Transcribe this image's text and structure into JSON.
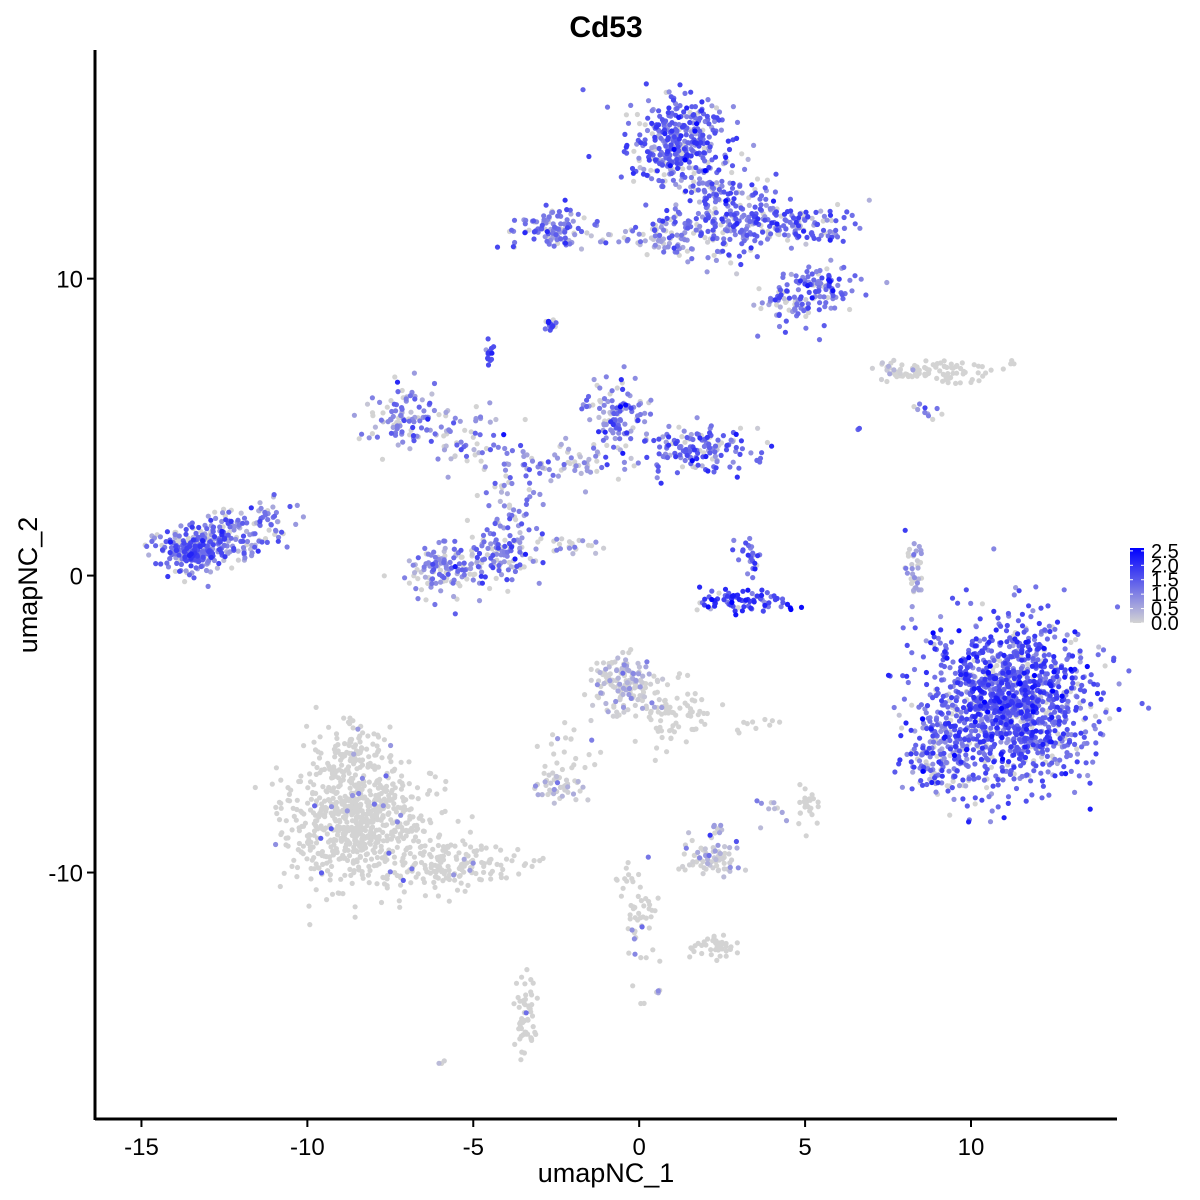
{
  "chart_data": {
    "type": "scatter",
    "title": "Cd53",
    "xlabel": "umapNC_1",
    "ylabel": "umapNC_2",
    "xlim": [
      -16.4,
      14.4
    ],
    "ylim": [
      -18.3,
      17.7
    ],
    "x_ticks": [
      -15,
      -10,
      -5,
      0,
      5,
      10
    ],
    "y_ticks": [
      -10,
      0,
      10
    ],
    "grid": false,
    "legend_position": "right",
    "color_scale": {
      "low_color": "#d3d3d3",
      "high_color": "#0000ff",
      "min": 0.0,
      "max": 2.6,
      "breaks": [
        "0.0",
        "0.5",
        "1.0",
        "1.5",
        "2.0",
        "2.5"
      ]
    },
    "clusters": [
      {
        "cx": 1.2,
        "cy": 14.6,
        "sx": 0.75,
        "sy": 0.8,
        "n": 380,
        "expr": 1.35
      },
      {
        "cx": 2.6,
        "cy": 12.2,
        "sx": 0.8,
        "sy": 0.8,
        "n": 220,
        "expr": 1.2
      },
      {
        "cx": 4.7,
        "cy": 11.8,
        "sx": 0.9,
        "sy": 0.35,
        "n": 140,
        "expr": 1.25
      },
      {
        "cx": 5.5,
        "cy": 9.7,
        "sx": 0.5,
        "sy": 0.35,
        "n": 90,
        "expr": 1.3
      },
      {
        "cx": 4.5,
        "cy": 9.1,
        "sx": 0.45,
        "sy": 0.4,
        "n": 60,
        "expr": 1.2
      },
      {
        "cx": -2.6,
        "cy": 11.7,
        "sx": 0.55,
        "sy": 0.35,
        "n": 100,
        "expr": 1.15
      },
      {
        "cx": -0.3,
        "cy": 11.3,
        "sx": 1.3,
        "sy": 0.15,
        "n": 40,
        "expr": 0.7
      },
      {
        "cx": 0.9,
        "cy": 11.4,
        "sx": 0.5,
        "sy": 0.35,
        "n": 50,
        "expr": 1.0
      },
      {
        "cx": -2.7,
        "cy": 8.5,
        "sx": 0.12,
        "sy": 0.1,
        "n": 15,
        "expr": 1.5
      },
      {
        "cx": -4.5,
        "cy": 7.4,
        "sx": 0.1,
        "sy": 0.2,
        "n": 15,
        "expr": 1.6
      },
      {
        "cx": 9.0,
        "cy": 6.9,
        "sx": 0.8,
        "sy": 0.2,
        "n": 80,
        "expr": 0.1
      },
      {
        "cx": 7.8,
        "cy": 6.9,
        "sx": 0.35,
        "sy": 0.15,
        "n": 20,
        "expr": 0.15
      },
      {
        "cx": -7.1,
        "cy": 5.5,
        "sx": 0.6,
        "sy": 0.5,
        "n": 90,
        "expr": 1.0
      },
      {
        "cx": -5.4,
        "cy": 4.6,
        "sx": 0.9,
        "sy": 0.6,
        "n": 70,
        "expr": 0.9
      },
      {
        "cx": -0.8,
        "cy": 5.5,
        "sx": 0.5,
        "sy": 0.55,
        "n": 110,
        "expr": 1.05
      },
      {
        "cx": 1.8,
        "cy": 4.3,
        "sx": 0.9,
        "sy": 0.4,
        "n": 150,
        "expr": 1.25
      },
      {
        "cx": -2.0,
        "cy": 3.8,
        "sx": 1.3,
        "sy": 0.35,
        "n": 70,
        "expr": 0.85
      },
      {
        "cx": -3.9,
        "cy": 2.3,
        "sx": 0.5,
        "sy": 0.9,
        "n": 60,
        "expr": 1.0
      },
      {
        "cx": -5.8,
        "cy": 0.2,
        "sx": 0.55,
        "sy": 0.45,
        "n": 120,
        "expr": 1.0
      },
      {
        "cx": -4.2,
        "cy": 0.7,
        "sx": 0.5,
        "sy": 0.5,
        "n": 100,
        "expr": 1.0
      },
      {
        "cx": -2.0,
        "cy": 1.0,
        "sx": 0.4,
        "sy": 0.2,
        "n": 20,
        "expr": 0.3
      },
      {
        "cx": -13.5,
        "cy": 0.9,
        "sx": 0.55,
        "sy": 0.35,
        "n": 230,
        "expr": 1.3
      },
      {
        "cx": -12.3,
        "cy": 1.3,
        "sx": 0.5,
        "sy": 0.45,
        "n": 110,
        "expr": 1.05
      },
      {
        "cx": -11.3,
        "cy": 1.7,
        "sx": 0.4,
        "sy": 0.5,
        "n": 40,
        "expr": 1.0
      },
      {
        "cx": 3.1,
        "cy": -0.8,
        "sx": 0.7,
        "sy": 0.2,
        "n": 80,
        "expr": 1.8
      },
      {
        "cx": 3.3,
        "cy": 0.6,
        "sx": 0.25,
        "sy": 0.4,
        "n": 25,
        "expr": 1.35
      },
      {
        "cx": 8.3,
        "cy": 0.2,
        "sx": 0.15,
        "sy": 0.55,
        "n": 35,
        "expr": 0.6
      },
      {
        "cx": 11.2,
        "cy": -4.2,
        "sx": 1.2,
        "sy": 1.35,
        "n": 1300,
        "expr": 1.45
      },
      {
        "cx": 9.1,
        "cy": -6.0,
        "sx": 0.55,
        "sy": 0.8,
        "n": 170,
        "expr": 1.25
      },
      {
        "cx": -0.5,
        "cy": -3.6,
        "sx": 0.5,
        "sy": 0.5,
        "n": 160,
        "expr": 0.2
      },
      {
        "cx": 1.1,
        "cy": -4.7,
        "sx": 0.5,
        "sy": 0.6,
        "n": 70,
        "expr": 0.1
      },
      {
        "cx": -1.8,
        "cy": -6.1,
        "sx": 0.6,
        "sy": 0.6,
        "n": 25,
        "expr": 0.05
      },
      {
        "cx": -2.4,
        "cy": -7.1,
        "sx": 0.4,
        "sy": 0.2,
        "n": 45,
        "expr": 0.25
      },
      {
        "cx": -8.4,
        "cy": -8.2,
        "sx": 1.1,
        "sy": 1.1,
        "n": 750,
        "expr": 0.04
      },
      {
        "cx": -8.6,
        "cy": -5.9,
        "sx": 0.45,
        "sy": 0.5,
        "n": 80,
        "expr": 0.05
      },
      {
        "cx": -5.6,
        "cy": -9.8,
        "sx": 1.2,
        "sy": 0.4,
        "n": 150,
        "expr": 0.02
      },
      {
        "cx": 2.1,
        "cy": -9.5,
        "sx": 0.5,
        "sy": 0.3,
        "n": 70,
        "expr": 0.15
      },
      {
        "cx": 2.4,
        "cy": -8.6,
        "sx": 0.15,
        "sy": 0.15,
        "n": 10,
        "expr": 0.6
      },
      {
        "cx": 0.0,
        "cy": -11.5,
        "sx": 0.3,
        "sy": 1.0,
        "n": 55,
        "expr": 0.05
      },
      {
        "cx": 2.3,
        "cy": -12.5,
        "sx": 0.4,
        "sy": 0.2,
        "n": 40,
        "expr": 0.05
      },
      {
        "cx": -3.4,
        "cy": -14.9,
        "sx": 0.15,
        "sy": 0.6,
        "n": 55,
        "expr": 0.0
      },
      {
        "cx": 5.1,
        "cy": -7.7,
        "sx": 0.2,
        "sy": 0.35,
        "n": 25,
        "expr": 0.05
      },
      {
        "cx": 3.6,
        "cy": -5.0,
        "sx": 0.5,
        "sy": 0.15,
        "n": 10,
        "expr": 0.1
      },
      {
        "cx": 4.0,
        "cy": -7.9,
        "sx": 0.25,
        "sy": 0.3,
        "n": 10,
        "expr": 0.4
      },
      {
        "cx": 8.8,
        "cy": 5.6,
        "sx": 0.3,
        "sy": 0.15,
        "n": 10,
        "expr": 0.9
      },
      {
        "cx": 0.6,
        "cy": -14.0,
        "sx": 0.05,
        "sy": 0.05,
        "n": 4,
        "expr": 0.4
      },
      {
        "cx": -6.0,
        "cy": -16.4,
        "sx": 0.05,
        "sy": 0.05,
        "n": 3,
        "expr": 0.6
      },
      {
        "cx": 6.6,
        "cy": 4.9,
        "sx": 0.05,
        "sy": 0.05,
        "n": 2,
        "expr": 1.3
      }
    ]
  }
}
